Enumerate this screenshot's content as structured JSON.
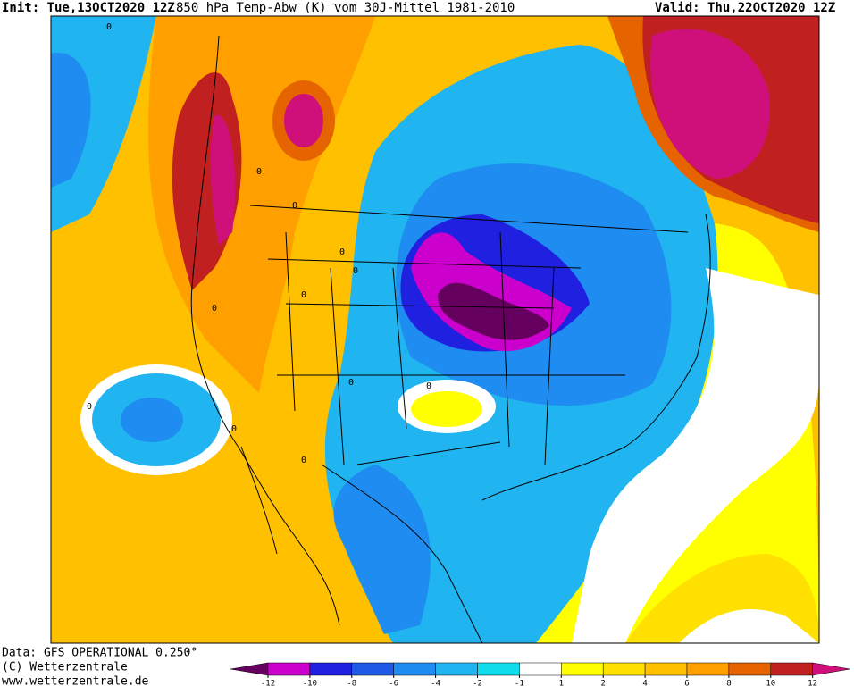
{
  "header": {
    "init": "Init: Tue,13OCT2020 12Z",
    "title": "850 hPa Temp-Abw (K) vom 30J-Mittel 1981-2010",
    "valid": "Valid: Thu,22OCT2020 12Z"
  },
  "map": {
    "contour_labels": [
      "0",
      "0",
      "0",
      "0",
      "0",
      "0",
      "0",
      "0",
      "0",
      "0",
      "0",
      "0"
    ]
  },
  "footer": {
    "source": "Data: GFS OPERATIONAL 0.250°",
    "copyright": "(C) Wetterzentrale",
    "url": "www.wetterzentrale.de"
  },
  "colorbar": {
    "ticks": [
      -12,
      -10,
      -8,
      -6,
      -4,
      -2,
      -1,
      1,
      2,
      4,
      6,
      8,
      10,
      12
    ],
    "colors": [
      "#66005e",
      "#cc00cc",
      "#2020e0",
      "#1e5ae6",
      "#1e8cf0",
      "#20b4f0",
      "#10dcec",
      "#ffffff",
      "#ffff00",
      "#ffe000",
      "#ffc000",
      "#ffa000",
      "#e66400",
      "#c02020",
      "#d0107a"
    ]
  }
}
